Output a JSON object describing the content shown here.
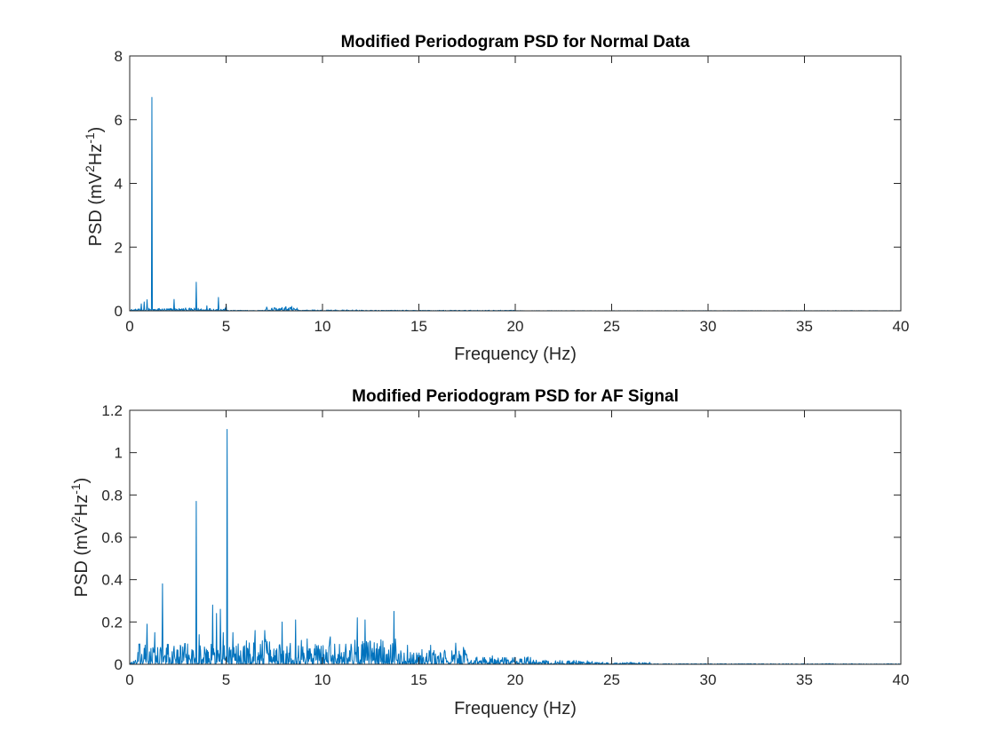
{
  "colors": {
    "series": "#0072BD",
    "axis": "#262626",
    "background": "#ffffff"
  },
  "chart_data": [
    {
      "type": "line",
      "title": "Modified Periodogram PSD for Normal Data",
      "xlabel": "Frequency (Hz)",
      "ylabel": {
        "base": "PSD (mV",
        "sup1": "2",
        "mid": "Hz",
        "sup2": "-1",
        "end": ")"
      },
      "xlim": [
        0,
        40
      ],
      "ylim": [
        0,
        8
      ],
      "xticks": [
        0,
        5,
        10,
        15,
        20,
        25,
        30,
        35,
        40
      ],
      "yticks": [
        0,
        2,
        4,
        6,
        8
      ],
      "grid": false,
      "series": [
        {
          "peaks": [
            [
              0.6,
              0.22
            ],
            [
              0.75,
              0.28
            ],
            [
              0.9,
              0.35
            ],
            [
              1.15,
              6.7
            ],
            [
              2.3,
              0.36
            ],
            [
              3.45,
              0.9
            ],
            [
              4.0,
              0.16
            ],
            [
              4.6,
              0.42
            ],
            [
              5.0,
              0.2
            ],
            [
              7.1,
              0.12
            ],
            [
              7.5,
              0.1
            ],
            [
              8.1,
              0.13
            ],
            [
              8.4,
              0.14
            ]
          ],
          "noise_bands": [
            [
              0,
              1,
              0.06
            ],
            [
              1,
              5,
              0.09
            ],
            [
              5,
              7,
              0.02
            ],
            [
              7,
              8.8,
              0.12
            ],
            [
              8.8,
              12,
              0.03
            ],
            [
              12,
              20,
              0.02
            ],
            [
              20,
              40,
              0.006
            ]
          ]
        }
      ]
    },
    {
      "type": "line",
      "title": "Modified Periodogram PSD for AF Signal",
      "xlabel": "Frequency (Hz)",
      "ylabel": {
        "base": "PSD (mV",
        "sup1": "2",
        "mid": "Hz",
        "sup2": "-1",
        "end": ")"
      },
      "xlim": [
        0,
        40
      ],
      "ylim": [
        0,
        1.2
      ],
      "xticks": [
        0,
        5,
        10,
        15,
        20,
        25,
        30,
        35,
        40
      ],
      "yticks": [
        0,
        0.2,
        0.4,
        0.6,
        0.8,
        1,
        1.2
      ],
      "ytick_labels": [
        "0",
        "0.2",
        "0.4",
        "0.6",
        "0.8",
        "1",
        "1.2"
      ],
      "grid": false,
      "series": [
        {
          "peaks": [
            [
              0.9,
              0.19
            ],
            [
              1.3,
              0.15
            ],
            [
              1.7,
              0.38
            ],
            [
              2.2,
              0.06
            ],
            [
              3.45,
              0.77
            ],
            [
              3.6,
              0.14
            ],
            [
              4.3,
              0.28
            ],
            [
              4.5,
              0.24
            ],
            [
              4.7,
              0.26
            ],
            [
              4.85,
              0.15
            ],
            [
              5.05,
              1.11
            ],
            [
              5.35,
              0.15
            ],
            [
              6.5,
              0.16
            ],
            [
              7.0,
              0.16
            ],
            [
              7.9,
              0.2
            ],
            [
              8.6,
              0.21
            ],
            [
              9.2,
              0.12
            ],
            [
              10.4,
              0.13
            ],
            [
              11.8,
              0.22
            ],
            [
              12.2,
              0.21
            ],
            [
              13.7,
              0.25
            ],
            [
              14.4,
              0.09
            ],
            [
              15.6,
              0.09
            ],
            [
              16.9,
              0.1
            ],
            [
              17.3,
              0.08
            ],
            [
              18.8,
              0.04
            ],
            [
              20.6,
              0.03
            ]
          ],
          "noise_bands": [
            [
              0,
              0.4,
              0.02
            ],
            [
              0.4,
              6,
              0.1
            ],
            [
              6,
              14,
              0.12
            ],
            [
              14,
              17.5,
              0.07
            ],
            [
              17.5,
              21,
              0.035
            ],
            [
              21,
              24,
              0.02
            ],
            [
              24,
              27,
              0.01
            ],
            [
              27,
              40,
              0.003
            ]
          ]
        }
      ]
    }
  ]
}
